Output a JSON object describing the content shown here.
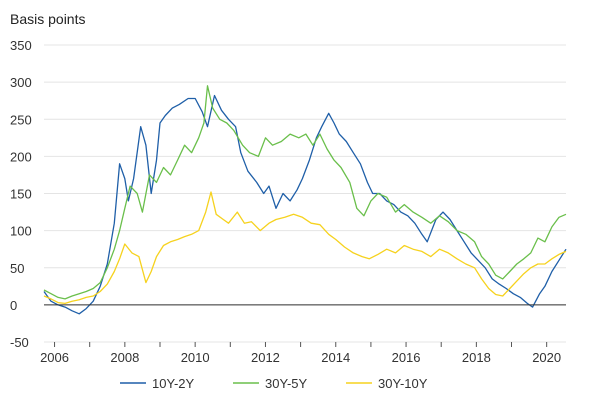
{
  "chart_data": {
    "type": "line",
    "unit_label": "Basis points",
    "ylim": [
      -50,
      350
    ],
    "yticks": [
      -50,
      0,
      50,
      100,
      150,
      200,
      250,
      300,
      350
    ],
    "xlim": [
      2005.7,
      2020.55
    ],
    "xticks": [
      2006,
      2008,
      2010,
      2012,
      2014,
      2016,
      2018,
      2020
    ],
    "grid": "horizontal",
    "legend_position": "bottom",
    "series": [
      {
        "name": "10Y-2Y",
        "color": "#1f5fa8",
        "points": [
          [
            2005.7,
            18
          ],
          [
            2005.9,
            5
          ],
          [
            2006.1,
            0
          ],
          [
            2006.3,
            -3
          ],
          [
            2006.5,
            -8
          ],
          [
            2006.7,
            -12
          ],
          [
            2006.9,
            -5
          ],
          [
            2007.1,
            5
          ],
          [
            2007.3,
            25
          ],
          [
            2007.5,
            55
          ],
          [
            2007.7,
            110
          ],
          [
            2007.85,
            190
          ],
          [
            2008.0,
            170
          ],
          [
            2008.1,
            140
          ],
          [
            2008.25,
            170
          ],
          [
            2008.45,
            240
          ],
          [
            2008.6,
            215
          ],
          [
            2008.75,
            150
          ],
          [
            2008.9,
            195
          ],
          [
            2009.0,
            245
          ],
          [
            2009.15,
            255
          ],
          [
            2009.35,
            265
          ],
          [
            2009.55,
            270
          ],
          [
            2009.8,
            278
          ],
          [
            2010.0,
            278
          ],
          [
            2010.2,
            260
          ],
          [
            2010.35,
            240
          ],
          [
            2010.55,
            282
          ],
          [
            2010.75,
            262
          ],
          [
            2010.95,
            250
          ],
          [
            2011.15,
            240
          ],
          [
            2011.3,
            205
          ],
          [
            2011.5,
            180
          ],
          [
            2011.75,
            165
          ],
          [
            2011.95,
            150
          ],
          [
            2012.1,
            160
          ],
          [
            2012.3,
            130
          ],
          [
            2012.5,
            150
          ],
          [
            2012.7,
            140
          ],
          [
            2012.9,
            155
          ],
          [
            2013.05,
            170
          ],
          [
            2013.25,
            195
          ],
          [
            2013.45,
            225
          ],
          [
            2013.6,
            240
          ],
          [
            2013.8,
            258
          ],
          [
            2013.95,
            245
          ],
          [
            2014.1,
            230
          ],
          [
            2014.3,
            220
          ],
          [
            2014.5,
            205
          ],
          [
            2014.7,
            190
          ],
          [
            2014.9,
            165
          ],
          [
            2015.05,
            150
          ],
          [
            2015.25,
            150
          ],
          [
            2015.45,
            140
          ],
          [
            2015.65,
            135
          ],
          [
            2015.85,
            125
          ],
          [
            2016.05,
            120
          ],
          [
            2016.25,
            110
          ],
          [
            2016.45,
            95
          ],
          [
            2016.6,
            85
          ],
          [
            2016.85,
            115
          ],
          [
            2017.05,
            125
          ],
          [
            2017.25,
            115
          ],
          [
            2017.45,
            100
          ],
          [
            2017.65,
            85
          ],
          [
            2017.85,
            70
          ],
          [
            2018.05,
            60
          ],
          [
            2018.25,
            50
          ],
          [
            2018.45,
            35
          ],
          [
            2018.65,
            28
          ],
          [
            2018.85,
            22
          ],
          [
            2019.05,
            15
          ],
          [
            2019.25,
            10
          ],
          [
            2019.45,
            2
          ],
          [
            2019.6,
            -3
          ],
          [
            2019.8,
            15
          ],
          [
            2019.95,
            25
          ],
          [
            2020.15,
            45
          ],
          [
            2020.35,
            60
          ],
          [
            2020.55,
            75
          ]
        ]
      },
      {
        "name": "30Y-5Y",
        "color": "#6abf4b",
        "points": [
          [
            2005.7,
            20
          ],
          [
            2005.9,
            15
          ],
          [
            2006.1,
            10
          ],
          [
            2006.3,
            8
          ],
          [
            2006.5,
            12
          ],
          [
            2006.7,
            15
          ],
          [
            2006.9,
            18
          ],
          [
            2007.1,
            22
          ],
          [
            2007.3,
            30
          ],
          [
            2007.5,
            50
          ],
          [
            2007.7,
            75
          ],
          [
            2007.85,
            100
          ],
          [
            2008.0,
            130
          ],
          [
            2008.15,
            160
          ],
          [
            2008.35,
            150
          ],
          [
            2008.5,
            125
          ],
          [
            2008.7,
            175
          ],
          [
            2008.9,
            165
          ],
          [
            2009.1,
            185
          ],
          [
            2009.3,
            175
          ],
          [
            2009.5,
            195
          ],
          [
            2009.7,
            215
          ],
          [
            2009.9,
            205
          ],
          [
            2010.1,
            225
          ],
          [
            2010.25,
            245
          ],
          [
            2010.35,
            295
          ],
          [
            2010.5,
            265
          ],
          [
            2010.7,
            250
          ],
          [
            2010.9,
            245
          ],
          [
            2011.1,
            235
          ],
          [
            2011.35,
            215
          ],
          [
            2011.55,
            205
          ],
          [
            2011.8,
            200
          ],
          [
            2012.0,
            225
          ],
          [
            2012.2,
            215
          ],
          [
            2012.45,
            220
          ],
          [
            2012.7,
            230
          ],
          [
            2012.95,
            225
          ],
          [
            2013.15,
            230
          ],
          [
            2013.35,
            215
          ],
          [
            2013.55,
            230
          ],
          [
            2013.75,
            210
          ],
          [
            2013.95,
            195
          ],
          [
            2014.15,
            185
          ],
          [
            2014.4,
            165
          ],
          [
            2014.6,
            130
          ],
          [
            2014.8,
            120
          ],
          [
            2015.0,
            140
          ],
          [
            2015.2,
            150
          ],
          [
            2015.45,
            145
          ],
          [
            2015.7,
            125
          ],
          [
            2015.95,
            135
          ],
          [
            2016.2,
            125
          ],
          [
            2016.45,
            118
          ],
          [
            2016.7,
            110
          ],
          [
            2016.95,
            120
          ],
          [
            2017.2,
            112
          ],
          [
            2017.45,
            100
          ],
          [
            2017.7,
            95
          ],
          [
            2017.95,
            85
          ],
          [
            2018.15,
            65
          ],
          [
            2018.35,
            55
          ],
          [
            2018.55,
            40
          ],
          [
            2018.75,
            35
          ],
          [
            2018.95,
            45
          ],
          [
            2019.15,
            55
          ],
          [
            2019.35,
            62
          ],
          [
            2019.55,
            70
          ],
          [
            2019.75,
            90
          ],
          [
            2019.95,
            85
          ],
          [
            2020.15,
            105
          ],
          [
            2020.35,
            118
          ],
          [
            2020.55,
            122
          ]
        ]
      },
      {
        "name": "30Y-10Y",
        "color": "#f6d21e",
        "points": [
          [
            2005.7,
            12
          ],
          [
            2005.9,
            8
          ],
          [
            2006.1,
            3
          ],
          [
            2006.3,
            2
          ],
          [
            2006.5,
            5
          ],
          [
            2006.7,
            7
          ],
          [
            2006.9,
            10
          ],
          [
            2007.1,
            12
          ],
          [
            2007.3,
            18
          ],
          [
            2007.5,
            28
          ],
          [
            2007.7,
            45
          ],
          [
            2007.85,
            62
          ],
          [
            2008.0,
            82
          ],
          [
            2008.2,
            70
          ],
          [
            2008.4,
            65
          ],
          [
            2008.6,
            30
          ],
          [
            2008.75,
            45
          ],
          [
            2008.9,
            65
          ],
          [
            2009.1,
            80
          ],
          [
            2009.3,
            85
          ],
          [
            2009.5,
            88
          ],
          [
            2009.7,
            92
          ],
          [
            2009.9,
            95
          ],
          [
            2010.1,
            100
          ],
          [
            2010.3,
            125
          ],
          [
            2010.45,
            152
          ],
          [
            2010.6,
            122
          ],
          [
            2010.8,
            115
          ],
          [
            2010.95,
            110
          ],
          [
            2011.2,
            125
          ],
          [
            2011.4,
            110
          ],
          [
            2011.6,
            112
          ],
          [
            2011.85,
            100
          ],
          [
            2012.1,
            110
          ],
          [
            2012.3,
            115
          ],
          [
            2012.55,
            118
          ],
          [
            2012.8,
            122
          ],
          [
            2013.05,
            118
          ],
          [
            2013.3,
            110
          ],
          [
            2013.55,
            108
          ],
          [
            2013.8,
            95
          ],
          [
            2014.0,
            88
          ],
          [
            2014.25,
            78
          ],
          [
            2014.5,
            70
          ],
          [
            2014.75,
            65
          ],
          [
            2014.95,
            62
          ],
          [
            2015.2,
            68
          ],
          [
            2015.45,
            75
          ],
          [
            2015.7,
            70
          ],
          [
            2015.95,
            80
          ],
          [
            2016.2,
            75
          ],
          [
            2016.45,
            72
          ],
          [
            2016.7,
            65
          ],
          [
            2016.95,
            75
          ],
          [
            2017.2,
            70
          ],
          [
            2017.45,
            62
          ],
          [
            2017.7,
            55
          ],
          [
            2017.95,
            50
          ],
          [
            2018.15,
            35
          ],
          [
            2018.35,
            22
          ],
          [
            2018.55,
            14
          ],
          [
            2018.75,
            12
          ],
          [
            2018.95,
            22
          ],
          [
            2019.15,
            32
          ],
          [
            2019.35,
            42
          ],
          [
            2019.55,
            50
          ],
          [
            2019.75,
            55
          ],
          [
            2019.95,
            55
          ],
          [
            2020.15,
            62
          ],
          [
            2020.35,
            68
          ],
          [
            2020.55,
            72
          ]
        ]
      }
    ]
  }
}
